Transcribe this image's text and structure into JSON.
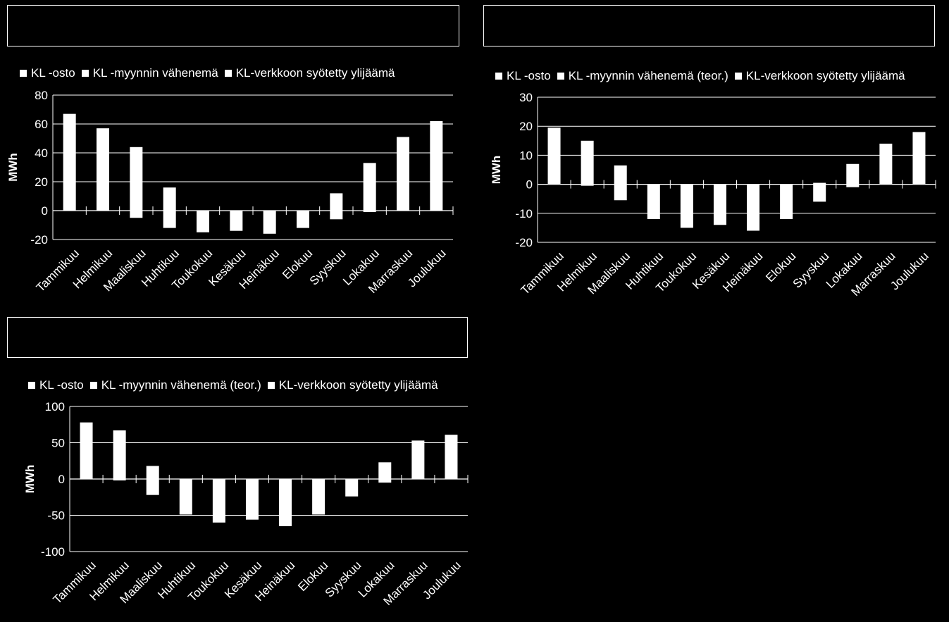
{
  "chart_data": [
    {
      "type": "bar",
      "stacked": true,
      "title": "",
      "ylabel": "MWh",
      "xlabel": "",
      "ylim": [
        -20,
        80
      ],
      "yticks": [
        -20,
        0,
        20,
        40,
        60,
        80
      ],
      "grid": true,
      "legend_position": "top",
      "categories": [
        "Tammikuu",
        "Helmikuu",
        "Maaliskuu",
        "Huhtikuu",
        "Toukokuu",
        "Kesäkuu",
        "Heinäkuu",
        "Elokuu",
        "Syyskuu",
        "Lokakuu",
        "Marraskuu",
        "Joulukuu"
      ],
      "series": [
        {
          "name": "KL -osto",
          "values": [
            67,
            57,
            44,
            16,
            0,
            0,
            0,
            0,
            12,
            33,
            51,
            62
          ]
        },
        {
          "name": "KL -myynnin vähenemä",
          "values": [
            0,
            0,
            -5,
            -12,
            -15,
            -14,
            -16,
            -12,
            -6,
            -1,
            0,
            0
          ]
        },
        {
          "name": "KL-verkkoon syötetty ylijäämä",
          "values": [
            0,
            0,
            0,
            0,
            0,
            0,
            0,
            0,
            0,
            0,
            0,
            0
          ]
        }
      ]
    },
    {
      "type": "bar",
      "stacked": true,
      "title": "",
      "ylabel": "MWh",
      "xlabel": "",
      "ylim": [
        -20,
        30
      ],
      "yticks": [
        -20,
        -10,
        0,
        10,
        20,
        30
      ],
      "grid": true,
      "legend_position": "top",
      "categories": [
        "Tammikuu",
        "Helmikuu",
        "Maaliskuu",
        "Huhtikuu",
        "Toukokuu",
        "Kesäkuu",
        "Heinäkuu",
        "Elokuu",
        "Syyskuu",
        "Lokakuu",
        "Marraskuu",
        "Joulukuu"
      ],
      "series": [
        {
          "name": "KL -osto",
          "values": [
            19.5,
            15,
            6.5,
            0,
            0,
            0,
            0,
            0,
            0.5,
            7,
            14,
            18
          ]
        },
        {
          "name": "KL -myynnin vähenemä (teor.)",
          "values": [
            0,
            -0.5,
            -5.5,
            -12,
            -15,
            -14,
            -16,
            -12,
            -6,
            -1,
            0,
            0
          ]
        },
        {
          "name": "KL-verkkoon syötetty ylijäämä",
          "values": [
            0,
            0,
            0,
            0,
            0,
            0,
            0,
            0,
            0,
            0,
            0,
            0
          ]
        }
      ]
    },
    {
      "type": "bar",
      "stacked": true,
      "title": "",
      "ylabel": "MWh",
      "xlabel": "",
      "ylim": [
        -100,
        100
      ],
      "yticks": [
        -100,
        -50,
        0,
        50,
        100
      ],
      "grid": true,
      "legend_position": "top",
      "categories": [
        "Tammikuu",
        "Helmikuu",
        "Maaliskuu",
        "Huhtikuu",
        "Toukokuu",
        "Kesäkuu",
        "Heinäkuu",
        "Elokuu",
        "Syyskuu",
        "Lokakuu",
        "Marraskuu",
        "Joulukuu"
      ],
      "series": [
        {
          "name": "KL -osto",
          "values": [
            78,
            67,
            18,
            0,
            0,
            0,
            0,
            0,
            0,
            23,
            53,
            61
          ]
        },
        {
          "name": "KL -myynnin vähenemä (teor.)",
          "values": [
            0,
            -2,
            -22,
            -49,
            -60,
            -56,
            -65,
            -49,
            -24,
            -5,
            0,
            0
          ]
        },
        {
          "name": "KL-verkkoon syötetty ylijäämä",
          "values": [
            0,
            0,
            0,
            0,
            0,
            0,
            0,
            0,
            0,
            0,
            0,
            0
          ]
        }
      ]
    }
  ]
}
